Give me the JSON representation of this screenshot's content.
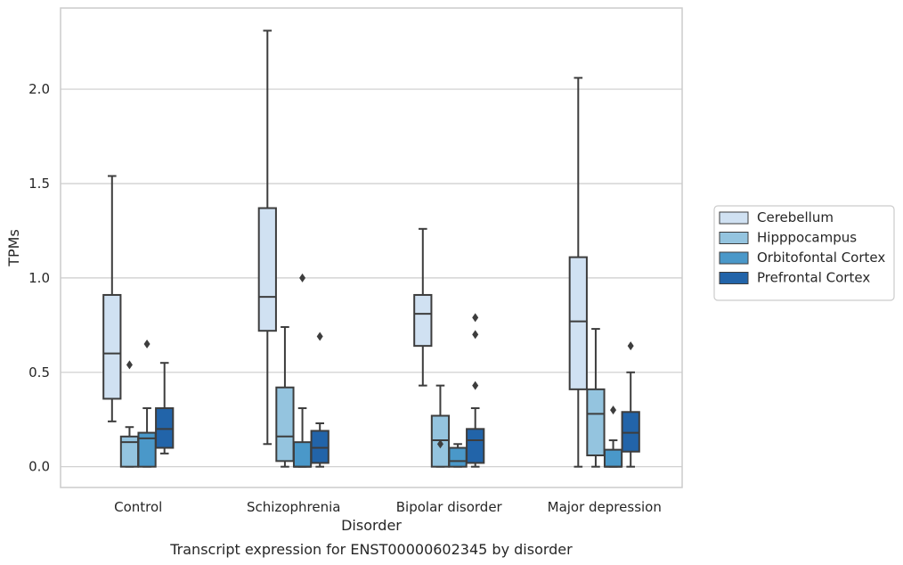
{
  "chart_data": {
    "type": "box",
    "caption": "Transcript expression for ENST00000602345 by disorder",
    "xlabel": "Disorder",
    "ylabel": "TPMs",
    "ylim": [
      -0.11,
      2.43
    ],
    "yticks": [
      0.0,
      0.5,
      1.0,
      1.5,
      2.0
    ],
    "ytick_labels": [
      "0.0",
      "0.5",
      "1.0",
      "1.5",
      "2.0"
    ],
    "grid": true,
    "legend_position": "right",
    "categories": [
      "Control",
      "Schizophrenia",
      "Bipolar disorder",
      "Major depression"
    ],
    "series": [
      {
        "name": "Cerebellum",
        "color": "#d0e1f2",
        "boxes": [
          {
            "whislo": 0.24,
            "q1": 0.36,
            "med": 0.6,
            "q3": 0.91,
            "whishi": 1.54,
            "fliers": []
          },
          {
            "whislo": 0.12,
            "q1": 0.72,
            "med": 0.9,
            "q3": 1.37,
            "whishi": 2.31,
            "fliers": []
          },
          {
            "whislo": 0.43,
            "q1": 0.64,
            "med": 0.81,
            "q3": 0.91,
            "whishi": 1.26,
            "fliers": []
          },
          {
            "whislo": 0.0,
            "q1": 0.41,
            "med": 0.77,
            "q3": 1.11,
            "whishi": 2.06,
            "fliers": []
          }
        ]
      },
      {
        "name": "Hipppocampus",
        "color": "#94c4df",
        "boxes": [
          {
            "whislo": 0.0,
            "q1": 0.0,
            "med": 0.13,
            "q3": 0.16,
            "whishi": 0.21,
            "fliers": [
              0.54
            ]
          },
          {
            "whislo": 0.0,
            "q1": 0.03,
            "med": 0.16,
            "q3": 0.42,
            "whishi": 0.74,
            "fliers": []
          },
          {
            "whislo": 0.0,
            "q1": 0.0,
            "med": 0.14,
            "q3": 0.27,
            "whishi": 0.43,
            "fliers": [
              0.12
            ]
          },
          {
            "whislo": 0.0,
            "q1": 0.06,
            "med": 0.28,
            "q3": 0.41,
            "whishi": 0.73,
            "fliers": []
          }
        ]
      },
      {
        "name": "Orbitofontal Cortex",
        "color": "#4a98c9",
        "boxes": [
          {
            "whislo": 0.0,
            "q1": 0.0,
            "med": 0.15,
            "q3": 0.18,
            "whishi": 0.31,
            "fliers": [
              0.65
            ]
          },
          {
            "whislo": 0.0,
            "q1": 0.0,
            "med": 0.0,
            "q3": 0.13,
            "whishi": 0.31,
            "fliers": [
              1.0
            ]
          },
          {
            "whislo": 0.0,
            "q1": 0.0,
            "med": 0.03,
            "q3": 0.1,
            "whishi": 0.12,
            "fliers": []
          },
          {
            "whislo": 0.0,
            "q1": 0.0,
            "med": 0.0,
            "q3": 0.09,
            "whishi": 0.14,
            "fliers": [
              0.3
            ]
          }
        ]
      },
      {
        "name": "Prefrontal Cortex",
        "color": "#2264a9",
        "boxes": [
          {
            "whislo": 0.07,
            "q1": 0.1,
            "med": 0.2,
            "q3": 0.31,
            "whishi": 0.55,
            "fliers": []
          },
          {
            "whislo": 0.0,
            "q1": 0.02,
            "med": 0.1,
            "q3": 0.19,
            "whishi": 0.23,
            "fliers": [
              0.69
            ]
          },
          {
            "whislo": 0.0,
            "q1": 0.02,
            "med": 0.14,
            "q3": 0.2,
            "whishi": 0.31,
            "fliers": [
              0.43,
              0.7,
              0.79
            ]
          },
          {
            "whislo": 0.0,
            "q1": 0.08,
            "med": 0.18,
            "q3": 0.29,
            "whishi": 0.5,
            "fliers": [
              0.64
            ]
          }
        ]
      }
    ]
  }
}
